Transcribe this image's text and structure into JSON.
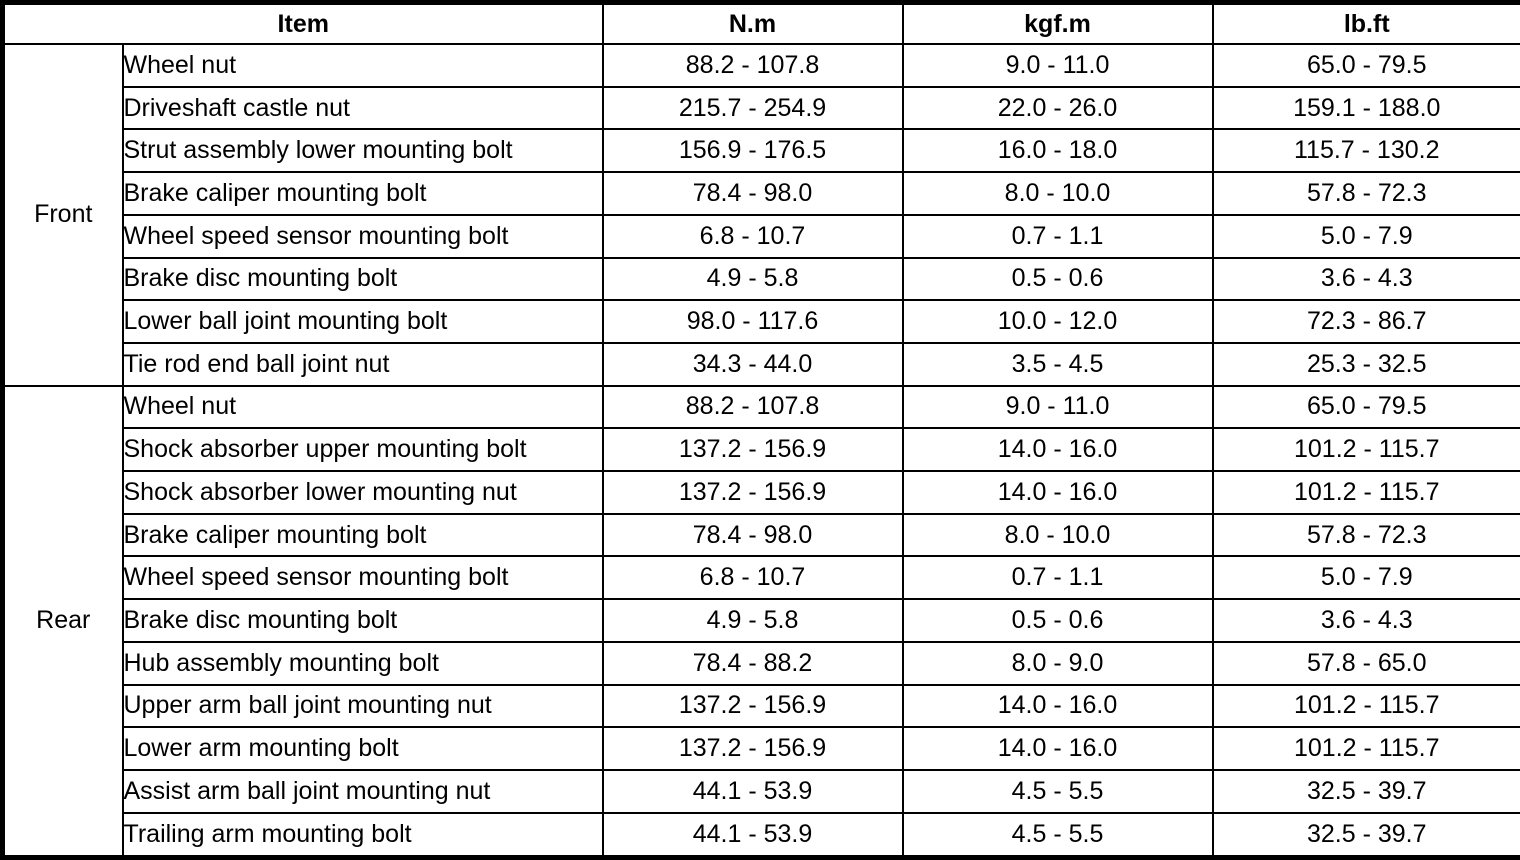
{
  "table": {
    "columns": {
      "item": "Item",
      "nm": "N.m",
      "kgfm": "kgf.m",
      "lbft": "lb.ft"
    },
    "sections": [
      {
        "label": "Front",
        "rows": [
          {
            "item": "Wheel nut",
            "nm": "88.2 - 107.8",
            "kgfm": "9.0 - 11.0",
            "lbft": "65.0 - 79.5"
          },
          {
            "item": "Driveshaft castle nut",
            "nm": "215.7 - 254.9",
            "kgfm": "22.0 - 26.0",
            "lbft": "159.1 - 188.0"
          },
          {
            "item": "Strut assembly lower mounting bolt",
            "nm": "156.9 - 176.5",
            "kgfm": "16.0 - 18.0",
            "lbft": "115.7 - 130.2"
          },
          {
            "item": "Brake caliper mounting bolt",
            "nm": "78.4 - 98.0",
            "kgfm": "8.0 - 10.0",
            "lbft": "57.8 - 72.3"
          },
          {
            "item": "Wheel speed sensor mounting bolt",
            "nm": "6.8 - 10.7",
            "kgfm": "0.7 - 1.1",
            "lbft": "5.0 - 7.9"
          },
          {
            "item": "Brake disc mounting bolt",
            "nm": "4.9 - 5.8",
            "kgfm": "0.5 - 0.6",
            "lbft": "3.6 - 4.3"
          },
          {
            "item": "Lower ball joint mounting bolt",
            "nm": "98.0 - 117.6",
            "kgfm": "10.0 - 12.0",
            "lbft": "72.3 - 86.7"
          },
          {
            "item": "Tie rod end ball joint nut",
            "nm": "34.3 - 44.0",
            "kgfm": "3.5 - 4.5",
            "lbft": "25.3 - 32.5"
          }
        ]
      },
      {
        "label": "Rear",
        "rows": [
          {
            "item": "Wheel nut",
            "nm": "88.2 - 107.8",
            "kgfm": "9.0 - 11.0",
            "lbft": "65.0 - 79.5"
          },
          {
            "item": "Shock absorber upper mounting bolt",
            "nm": "137.2 - 156.9",
            "kgfm": "14.0 - 16.0",
            "lbft": "101.2 - 115.7"
          },
          {
            "item": "Shock absorber lower mounting nut",
            "nm": "137.2 - 156.9",
            "kgfm": "14.0 - 16.0",
            "lbft": "101.2 - 115.7"
          },
          {
            "item": "Brake caliper mounting bolt",
            "nm": "78.4 - 98.0",
            "kgfm": "8.0 - 10.0",
            "lbft": "57.8 - 72.3"
          },
          {
            "item": "Wheel speed sensor mounting bolt",
            "nm": "6.8 - 10.7",
            "kgfm": "0.7 - 1.1",
            "lbft": "5.0 - 7.9"
          },
          {
            "item": "Brake disc mounting bolt",
            "nm": "4.9 - 5.8",
            "kgfm": "0.5 - 0.6",
            "lbft": "3.6 - 4.3"
          },
          {
            "item": "Hub assembly mounting bolt",
            "nm": "78.4 - 88.2",
            "kgfm": "8.0 - 9.0",
            "lbft": "57.8 - 65.0"
          },
          {
            "item": "Upper arm ball joint mounting nut",
            "nm": "137.2 - 156.9",
            "kgfm": "14.0 - 16.0",
            "lbft": "101.2 - 115.7"
          },
          {
            "item": "Lower arm mounting bolt",
            "nm": "137.2 - 156.9",
            "kgfm": "14.0 - 16.0",
            "lbft": "101.2 - 115.7"
          },
          {
            "item": "Assist arm ball joint mounting nut",
            "nm": "44.1 - 53.9",
            "kgfm": "4.5 - 5.5",
            "lbft": "32.5 - 39.7"
          },
          {
            "item": "Trailing arm mounting bolt",
            "nm": "44.1 - 53.9",
            "kgfm": "4.5 - 5.5",
            "lbft": "32.5 - 39.7"
          }
        ]
      }
    ]
  },
  "colors": {
    "border": "#000000",
    "text": "#000000",
    "background": "#ffffff"
  }
}
